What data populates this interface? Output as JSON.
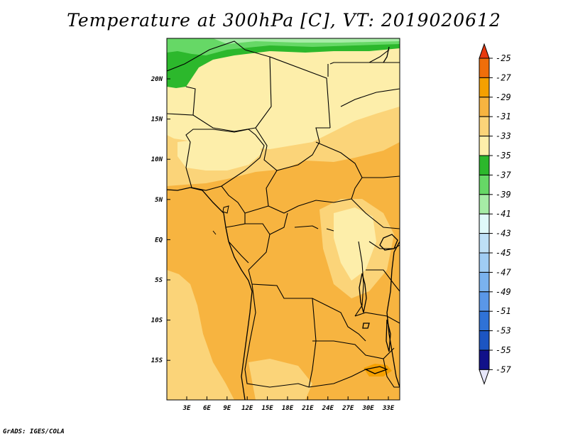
{
  "title": "Temperature at 300hPa [C], VT: 2019020612",
  "credit": "GrADS: IGES/COLA",
  "map": {
    "lat_ticks": [
      "20N",
      "15N",
      "10N",
      "5N",
      "EQ",
      "5S",
      "10S",
      "15S"
    ],
    "lon_ticks": [
      "3E",
      "6E",
      "9E",
      "12E",
      "15E",
      "18E",
      "21E",
      "24E",
      "27E",
      "30E",
      "33E"
    ]
  },
  "colorbar": {
    "labels": [
      "-25",
      "-27",
      "-29",
      "-31",
      "-33",
      "-35",
      "-37",
      "-39",
      "-41",
      "-43",
      "-45",
      "-47",
      "-49",
      "-51",
      "-53",
      "-55",
      "-57"
    ],
    "colors": [
      "#e8390e",
      "#f06e0a",
      "#f5a000",
      "#f7b440",
      "#fbd479",
      "#fdeeaa",
      "#2cb82c",
      "#66d866",
      "#a6eca6",
      "#e0f9f9",
      "#bee0f6",
      "#a0cdf4",
      "#7ab2ee",
      "#5a97e8",
      "#2f72d6",
      "#1c55c2",
      "#11118a",
      "#e6e6fa"
    ],
    "colors_note": "top arrow to bottom arrow"
  },
  "field_colors": {
    "dark_orange": "#f7b440",
    "light_orange": "#fbd479",
    "pale_yellow": "#fdeeaa",
    "green": "#2cb82c",
    "light_green": "#66d866",
    "pale_green": "#a6eca6"
  }
}
